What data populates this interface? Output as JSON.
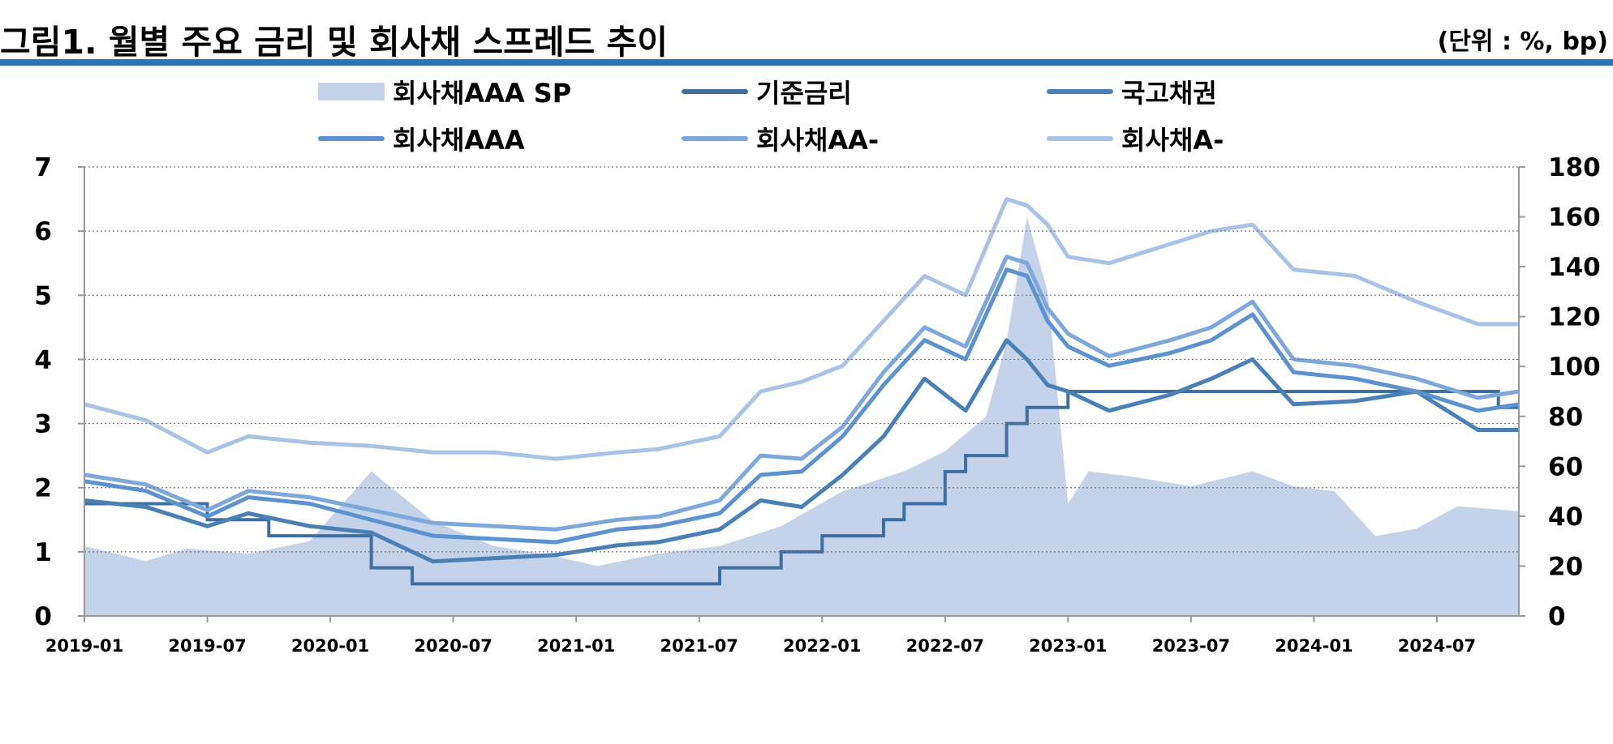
{
  "header": {
    "title": "그림1. 월별 주요 금리 및 회사채 스프레드 추이",
    "unit": "(단위 : %, bp)"
  },
  "colors": {
    "rule": "#2e74b5",
    "area": "#c5d3ea"
  },
  "legend": [
    {
      "label": "회사채AAA SP",
      "kind": "area",
      "color": "#c5d3ea"
    },
    {
      "label": "기준금리",
      "kind": "line",
      "color": "#3f6fa0"
    },
    {
      "label": "국고채권",
      "kind": "line",
      "color": "#4a80b6"
    },
    {
      "label": "회사채AAA",
      "kind": "line",
      "color": "#5b92cf"
    },
    {
      "label": "회사채AA-",
      "kind": "line",
      "color": "#7ea8dc"
    },
    {
      "label": "회사채A-",
      "kind": "line",
      "color": "#a8c3e6"
    }
  ],
  "chart_data": {
    "type": "line",
    "x_tick_labels": [
      "2019-01",
      "2019-07",
      "2020-01",
      "2020-07",
      "2021-01",
      "2021-07",
      "2022-01",
      "2022-07",
      "2023-01",
      "2023-07",
      "2024-01",
      "2024-07"
    ],
    "x_range": [
      "2019-01",
      "2024-11"
    ],
    "y_left_ticks": [
      "0",
      "1",
      "2",
      "3",
      "4",
      "5",
      "6",
      "7"
    ],
    "y_left_range": [
      0,
      7
    ],
    "y_right_ticks": [
      "0",
      "20",
      "40",
      "60",
      "80",
      "100",
      "120",
      "140",
      "160",
      "180"
    ],
    "y_right_range": [
      0,
      180
    ],
    "grid": true,
    "legend_position": "top",
    "series": [
      {
        "name": "회사채AAA SP",
        "type": "area",
        "axis": "right",
        "color": "#c5d3ea",
        "x": [
          "2019-01",
          "2019-04",
          "2019-06",
          "2019-09",
          "2019-12",
          "2020-03",
          "2020-06",
          "2020-09",
          "2020-12",
          "2021-02",
          "2021-05",
          "2021-08",
          "2021-11",
          "2022-02",
          "2022-05",
          "2022-07",
          "2022-09",
          "2022-10",
          "2022-11",
          "2022-12",
          "2023-01",
          "2023-02",
          "2023-04",
          "2023-07",
          "2023-10",
          "2023-12",
          "2024-02",
          "2024-04",
          "2024-06",
          "2024-08",
          "2024-11"
        ],
        "values": [
          28,
          22,
          27,
          25,
          30,
          58,
          38,
          28,
          24,
          20,
          25,
          28,
          36,
          50,
          58,
          66,
          80,
          110,
          160,
          130,
          45,
          58,
          56,
          52,
          58,
          52,
          50,
          32,
          35,
          44,
          42
        ]
      },
      {
        "name": "기준금리",
        "type": "step",
        "axis": "left",
        "color": "#3f6fa0",
        "x": [
          "2019-01",
          "2019-07",
          "2019-10",
          "2020-03",
          "2020-05",
          "2021-08",
          "2021-11",
          "2022-01",
          "2022-04",
          "2022-05",
          "2022-07",
          "2022-08",
          "2022-10",
          "2022-11",
          "2023-01",
          "2024-10",
          "2024-11"
        ],
        "values": [
          1.75,
          1.5,
          1.25,
          0.75,
          0.5,
          0.75,
          1.0,
          1.25,
          1.5,
          1.75,
          2.25,
          2.5,
          3.0,
          3.25,
          3.5,
          3.25,
          3.25
        ]
      },
      {
        "name": "국고채권",
        "type": "line",
        "axis": "left",
        "color": "#4a80b6",
        "x": [
          "2019-01",
          "2019-04",
          "2019-07",
          "2019-09",
          "2019-12",
          "2020-03",
          "2020-06",
          "2020-09",
          "2020-12",
          "2021-03",
          "2021-05",
          "2021-08",
          "2021-10",
          "2021-12",
          "2022-02",
          "2022-04",
          "2022-06",
          "2022-08",
          "2022-10",
          "2022-11",
          "2022-12",
          "2023-01",
          "2023-03",
          "2023-06",
          "2023-08",
          "2023-10",
          "2023-12",
          "2024-03",
          "2024-06",
          "2024-09",
          "2024-11"
        ],
        "values": [
          1.8,
          1.7,
          1.4,
          1.6,
          1.4,
          1.3,
          0.85,
          0.9,
          0.95,
          1.1,
          1.15,
          1.35,
          1.8,
          1.7,
          2.2,
          2.8,
          3.7,
          3.2,
          4.3,
          4.0,
          3.6,
          3.5,
          3.2,
          3.45,
          3.7,
          4.0,
          3.3,
          3.35,
          3.5,
          2.9,
          2.9
        ]
      },
      {
        "name": "회사채AAA",
        "type": "line",
        "axis": "left",
        "color": "#5b92cf",
        "x": [
          "2019-01",
          "2019-04",
          "2019-07",
          "2019-09",
          "2019-12",
          "2020-03",
          "2020-06",
          "2020-09",
          "2020-12",
          "2021-03",
          "2021-05",
          "2021-08",
          "2021-10",
          "2021-12",
          "2022-02",
          "2022-04",
          "2022-06",
          "2022-08",
          "2022-10",
          "2022-11",
          "2022-12",
          "2023-01",
          "2023-03",
          "2023-06",
          "2023-08",
          "2023-10",
          "2023-12",
          "2024-03",
          "2024-06",
          "2024-09",
          "2024-11"
        ],
        "values": [
          2.1,
          1.95,
          1.55,
          1.85,
          1.75,
          1.5,
          1.25,
          1.2,
          1.15,
          1.35,
          1.4,
          1.6,
          2.2,
          2.25,
          2.8,
          3.6,
          4.3,
          4.0,
          5.4,
          5.3,
          4.6,
          4.2,
          3.9,
          4.1,
          4.3,
          4.7,
          3.8,
          3.7,
          3.5,
          3.2,
          3.3
        ]
      },
      {
        "name": "회사채AA-",
        "type": "line",
        "axis": "left",
        "color": "#7ea8dc",
        "x": [
          "2019-01",
          "2019-04",
          "2019-07",
          "2019-09",
          "2019-12",
          "2020-03",
          "2020-06",
          "2020-09",
          "2020-12",
          "2021-03",
          "2021-05",
          "2021-08",
          "2021-10",
          "2021-12",
          "2022-02",
          "2022-04",
          "2022-06",
          "2022-08",
          "2022-10",
          "2022-11",
          "2022-12",
          "2023-01",
          "2023-03",
          "2023-06",
          "2023-08",
          "2023-10",
          "2023-12",
          "2024-03",
          "2024-06",
          "2024-09",
          "2024-11"
        ],
        "values": [
          2.2,
          2.05,
          1.65,
          1.95,
          1.85,
          1.65,
          1.45,
          1.4,
          1.35,
          1.5,
          1.55,
          1.8,
          2.5,
          2.45,
          2.95,
          3.8,
          4.5,
          4.2,
          5.6,
          5.5,
          4.8,
          4.4,
          4.05,
          4.3,
          4.5,
          4.9,
          4.0,
          3.9,
          3.7,
          3.4,
          3.5
        ]
      },
      {
        "name": "회사채A-",
        "type": "line",
        "axis": "left",
        "color": "#a8c3e6",
        "x": [
          "2019-01",
          "2019-04",
          "2019-07",
          "2019-09",
          "2019-12",
          "2020-03",
          "2020-06",
          "2020-09",
          "2020-12",
          "2021-03",
          "2021-05",
          "2021-08",
          "2021-10",
          "2021-12",
          "2022-02",
          "2022-04",
          "2022-06",
          "2022-08",
          "2022-10",
          "2022-11",
          "2022-12",
          "2023-01",
          "2023-03",
          "2023-06",
          "2023-08",
          "2023-10",
          "2023-12",
          "2024-03",
          "2024-06",
          "2024-09",
          "2024-11"
        ],
        "values": [
          3.3,
          3.05,
          2.55,
          2.8,
          2.7,
          2.65,
          2.55,
          2.55,
          2.45,
          2.55,
          2.6,
          2.8,
          3.5,
          3.65,
          3.9,
          4.6,
          5.3,
          5.0,
          6.5,
          6.4,
          6.1,
          5.6,
          5.5,
          5.8,
          6.0,
          6.1,
          5.4,
          5.3,
          4.9,
          4.55,
          4.55
        ]
      }
    ]
  }
}
